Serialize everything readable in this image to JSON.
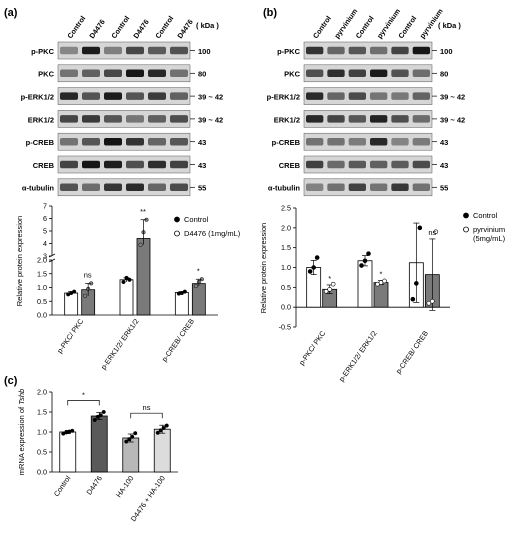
{
  "panels": {
    "a": {
      "label": "(a)",
      "lane_labels": [
        "Control",
        "D4476",
        "Control",
        "D4476",
        "Control",
        "D4476"
      ],
      "kda_header": "( kDa )",
      "blots": [
        {
          "name": "p-PKC",
          "kda": "100"
        },
        {
          "name": "PKC",
          "kda": "80"
        },
        {
          "name": "p-ERK1/2",
          "kda": "39 ~ 42"
        },
        {
          "name": "ERK1/2",
          "kda": "39 ~ 42"
        },
        {
          "name": "p-CREB",
          "kda": "43"
        },
        {
          "name": "CREB",
          "kda": "43"
        },
        {
          "name": "α-tubulin",
          "kda": "55"
        }
      ]
    },
    "b": {
      "label": "(b)",
      "lane_labels": [
        "Control",
        "pyrvinium",
        "Control",
        "pyrvinium",
        "Control",
        "pyrvinium"
      ],
      "kda_header": "( kDa )",
      "blots": [
        {
          "name": "p-PKC",
          "kda": "100"
        },
        {
          "name": "PKC",
          "kda": "80"
        },
        {
          "name": "p-ERK1/2",
          "kda": "39 ~ 42"
        },
        {
          "name": "ERK1/2",
          "kda": "39 ~ 42"
        },
        {
          "name": "p-CREB",
          "kda": "43"
        },
        {
          "name": "CREB",
          "kda": "43"
        },
        {
          "name": "α-tubulin",
          "kda": "55"
        }
      ]
    },
    "c": {
      "label": "(c)"
    }
  },
  "chart_data": [
    {
      "type": "bar",
      "panel": "a",
      "ylabel": "Relative protein expression",
      "categories": [
        "p-PKC/ PKC",
        "p-ERK1/2/ ERK1/2",
        "p-CREB/ CREB"
      ],
      "yticks_lower": [
        "0.0",
        "0.5",
        "1.0",
        "1.5",
        "2.0"
      ],
      "yticks_upper": [
        "3",
        "4",
        "5",
        "6",
        "7"
      ],
      "axis_break": [
        2.0,
        3.0
      ],
      "series": [
        {
          "name": "Control",
          "values": [
            0.8,
            1.28,
            0.82
          ],
          "points": [
            [
              0.75,
              0.8,
              0.85
            ],
            [
              1.2,
              1.35,
              1.28
            ],
            [
              0.78,
              0.8,
              0.85
            ]
          ],
          "fill": "#ffffff"
        },
        {
          "name": "D4476 (1mg/mL)",
          "values": [
            0.92,
            4.4,
            1.14
          ],
          "points": [
            [
              0.7,
              0.95,
              1.15
            ],
            [
              3.9,
              4.9,
              5.9
            ],
            [
              1.05,
              1.2,
              1.3
            ]
          ],
          "fill": "#7a7a7a"
        }
      ],
      "significance": [
        "ns",
        "**",
        "*"
      ]
    },
    {
      "type": "bar",
      "panel": "b",
      "ylabel": "Relative protein expression",
      "categories": [
        "p-PKC/ PKC",
        "p-ERK1/2/ ERK1/2",
        "p-CREB/ CREB"
      ],
      "yticks": [
        "-0.5",
        "0.0",
        "0.5",
        "1.0",
        "1.5",
        "2.0",
        "2.5"
      ],
      "ylim": [
        -0.5,
        2.5
      ],
      "series": [
        {
          "name": "Control",
          "values": [
            1.0,
            1.17,
            1.12
          ],
          "err": [
            0.18,
            0.13,
            1.0
          ],
          "points": [
            [
              0.9,
              1.0,
              1.25
            ],
            [
              1.05,
              1.17,
              1.35
            ],
            [
              0.2,
              0.6,
              2.0
            ]
          ],
          "fill": "#ffffff"
        },
        {
          "name": "pyrvinium (5mg/mL)",
          "values": [
            0.45,
            0.62,
            0.82
          ],
          "err": [
            0.11,
            0.05,
            0.9
          ],
          "points": [
            [
              0.4,
              0.45,
              0.58
            ],
            [
              0.58,
              0.62,
              0.66
            ],
            [
              0.1,
              0.15,
              1.9
            ]
          ],
          "fill": "#7a7a7a"
        }
      ],
      "significance": [
        "*",
        "*",
        "ns"
      ]
    },
    {
      "type": "bar",
      "panel": "c",
      "ylabel_prefix": "mRNA expression of ",
      "ylabel_gene": "Tshb",
      "categories": [
        "Control",
        "D4476",
        "HA-100",
        "D4476 + HA-100"
      ],
      "yticks": [
        "0.0",
        "0.5",
        "1.0",
        "1.5",
        "2.0"
      ],
      "ylim": [
        0,
        2.0
      ],
      "values": [
        1.0,
        1.4,
        0.85,
        1.07
      ],
      "err": [
        0.04,
        0.09,
        0.1,
        0.1
      ],
      "points": [
        [
          0.96,
          0.99,
          1.01,
          1.03
        ],
        [
          1.3,
          1.38,
          1.42,
          1.5
        ],
        [
          0.76,
          0.82,
          0.88,
          0.97
        ],
        [
          0.98,
          1.04,
          1.1,
          1.16
        ]
      ],
      "fills": [
        "#ffffff",
        "#5a5a5a",
        "#b8b8b8",
        "#dcdcdc"
      ],
      "significance": [
        {
          "from": 0,
          "to": 1,
          "label": "*"
        },
        {
          "from": 2,
          "to": 3,
          "label": "ns"
        }
      ]
    }
  ]
}
